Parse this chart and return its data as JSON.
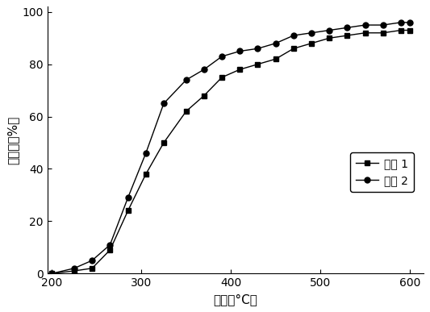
{
  "series1_label": "实例 1",
  "series2_label": "实例 2",
  "series1_x": [
    200,
    225,
    245,
    265,
    285,
    305,
    325,
    350,
    370,
    390,
    410,
    430,
    450,
    470,
    490,
    510,
    530,
    550,
    570,
    590,
    600
  ],
  "series1_y": [
    0,
    1,
    2,
    9,
    24,
    38,
    50,
    62,
    68,
    75,
    78,
    80,
    82,
    86,
    88,
    90,
    91,
    92,
    92,
    93,
    93
  ],
  "series2_x": [
    200,
    225,
    245,
    265,
    285,
    305,
    325,
    350,
    370,
    390,
    410,
    430,
    450,
    470,
    490,
    510,
    530,
    550,
    570,
    590,
    600
  ],
  "series2_y": [
    0,
    2,
    5,
    11,
    29,
    46,
    65,
    74,
    78,
    83,
    85,
    86,
    88,
    91,
    92,
    93,
    94,
    95,
    95,
    96,
    96
  ],
  "xlabel": "温度（°C）",
  "ylabel": "转化率（%）",
  "xlim": [
    195,
    615
  ],
  "ylim": [
    0,
    102
  ],
  "xticks": [
    200,
    300,
    400,
    500,
    600
  ],
  "yticks": [
    0,
    20,
    40,
    60,
    80,
    100
  ],
  "line_color": "#000000",
  "bg_color": "#ffffff"
}
